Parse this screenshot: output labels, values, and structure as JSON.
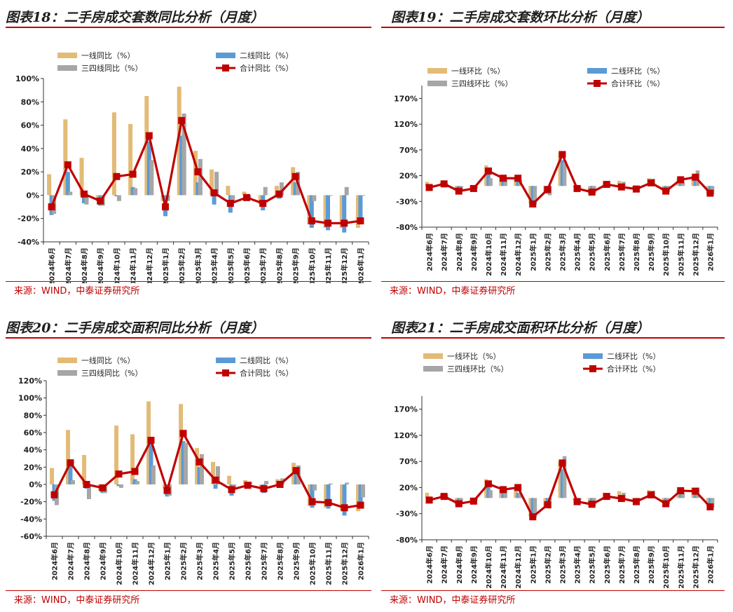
{
  "colors": {
    "tier1": "#e3bb77",
    "tier2": "#5b9bd5",
    "tier34": "#a6a6a6",
    "total": "#c00000",
    "axis": "#333333",
    "accent": "#c00000"
  },
  "chart_data": [
    {
      "type": "bar",
      "title": "图表18：二手房成交套数同比分析（月度）",
      "source": "来源：WIND，中泰证券研究所",
      "categories": [
        "2024年6月",
        "2024年7月",
        "2024年8月",
        "2024年9月",
        "2024年10月",
        "2024年11月",
        "2024年12月",
        "2025年1月",
        "2025年2月",
        "2025年3月",
        "2025年4月",
        "2025年5月",
        "2025年6月",
        "2025年7月",
        "2025年8月",
        "2025年9月",
        "2025年10月",
        "2025年11月",
        "2025年12月",
        "2026年1月"
      ],
      "yticks": [
        "100%",
        "80%",
        "60%",
        "40%",
        "20%",
        "0%",
        "-20%",
        "-40%"
      ],
      "ylim": [
        -40,
        100
      ],
      "series": [
        {
          "name": "一线同比（%）",
          "kind": "bar",
          "values": [
            18,
            65,
            32,
            -5,
            71,
            61,
            85,
            -5,
            93,
            38,
            22,
            8,
            3,
            -8,
            8,
            24,
            -25,
            -28,
            -28,
            -28
          ]
        },
        {
          "name": "二线同比（%）",
          "kind": "bar",
          "values": [
            -17,
            20,
            -7,
            -9,
            -1,
            7,
            46,
            -18,
            51,
            11,
            -8,
            -15,
            -5,
            -13,
            -3,
            11,
            -28,
            -30,
            -32,
            -25
          ]
        },
        {
          "name": "三四线同比（%）",
          "kind": "bar",
          "values": [
            -16,
            3,
            -8,
            -9,
            -5,
            6,
            30,
            -5,
            70,
            31,
            20,
            -5,
            -3,
            7,
            11,
            20,
            -5,
            0,
            7,
            0
          ]
        },
        {
          "name": "合计同比（%）",
          "kind": "line",
          "values": [
            -10,
            26,
            1,
            -5,
            16,
            18,
            51,
            -10,
            64,
            20,
            2,
            -7,
            -2,
            -7,
            1,
            16,
            -22,
            -24,
            -24,
            -22
          ]
        }
      ]
    },
    {
      "type": "bar",
      "title": "图表19：二手房成交套数环比分析（月度）",
      "source": "来源：WIND，中泰证券研究所",
      "categories": [
        "2024年6月",
        "2024年7月",
        "2024年8月",
        "2024年9月",
        "2024年10月",
        "2024年11月",
        "2024年12月",
        "2025年1月",
        "2025年2月",
        "2025年3月",
        "2025年4月",
        "2025年5月",
        "2025年6月",
        "2025年7月",
        "2025年8月",
        "2025年9月",
        "2025年10月",
        "2025年11月",
        "2025年12月",
        "2026年1月"
      ],
      "yticks": [
        "170%",
        "120%",
        "70%",
        "20%",
        "-30%",
        "-80%"
      ],
      "ylim": [
        -80,
        195
      ],
      "series": [
        {
          "name": "一线环比（%）",
          "kind": "bar",
          "values": [
            8,
            7,
            -10,
            -3,
            40,
            16,
            15,
            -35,
            -12,
            65,
            -3,
            -14,
            8,
            10,
            -3,
            15,
            -9,
            13,
            20,
            -15
          ]
        },
        {
          "name": "二线环比（%）",
          "kind": "bar",
          "values": [
            -5,
            0,
            -12,
            -5,
            25,
            13,
            12,
            -40,
            -15,
            50,
            -5,
            -16,
            0,
            -3,
            -8,
            5,
            -12,
            10,
            15,
            -18
          ]
        },
        {
          "name": "三四线环比（%）",
          "kind": "bar",
          "values": [
            -3,
            5,
            -10,
            -5,
            15,
            15,
            12,
            -36,
            -18,
            45,
            -5,
            -15,
            2,
            8,
            -6,
            14,
            -12,
            8,
            30,
            -16
          ]
        },
        {
          "name": "合计环比（%）",
          "kind": "line",
          "values": [
            -3,
            4,
            -10,
            -5,
            29,
            15,
            15,
            -35,
            -7,
            61,
            -5,
            -12,
            3,
            -2,
            -6,
            6,
            -10,
            12,
            17,
            -14
          ]
        }
      ]
    },
    {
      "type": "bar",
      "title": "图表20：二手房成交面积同比分析（月度）",
      "source": "来源：WIND，中泰证券研究所",
      "categories": [
        "2024年6月",
        "2024年7月",
        "2024年8月",
        "2024年9月",
        "2024年10月",
        "2024年11月",
        "2024年12月",
        "2025年1月",
        "2025年2月",
        "2025年3月",
        "2025年4月",
        "2025年5月",
        "2025年6月",
        "2025年7月",
        "2025年8月",
        "2025年9月",
        "2025年10月",
        "2025年11月",
        "2025年12月",
        "2026年1月"
      ],
      "yticks": [
        "120%",
        "100%",
        "80%",
        "60%",
        "40%",
        "20%",
        "0%",
        "-20%",
        "-40%",
        "-60%"
      ],
      "ylim": [
        -60,
        120
      ],
      "series": [
        {
          "name": "一线同比（%）",
          "kind": "bar",
          "values": [
            19,
            63,
            34,
            -7,
            68,
            58,
            96,
            -5,
            93,
            42,
            26,
            10,
            5,
            -7,
            6,
            25,
            -25,
            -27,
            -30,
            -31
          ]
        },
        {
          "name": "二线同比（%）",
          "kind": "bar",
          "values": [
            -19,
            22,
            -5,
            -10,
            -2,
            6,
            48,
            -14,
            50,
            20,
            -5,
            -13,
            -5,
            -10,
            -4,
            14,
            -27,
            -28,
            -36,
            -25
          ]
        },
        {
          "name": "三四线同比（%）",
          "kind": "bar",
          "values": [
            -24,
            5,
            -17,
            -10,
            -4,
            4,
            22,
            -13,
            48,
            35,
            21,
            -5,
            3,
            4,
            7,
            22,
            -7,
            1,
            2,
            -15
          ]
        },
        {
          "name": "合计同比（%）",
          "kind": "line",
          "values": [
            -12,
            25,
            0,
            -4,
            12,
            15,
            51,
            -7,
            59,
            26,
            5,
            -6,
            -1,
            -5,
            0,
            16,
            -20,
            -21,
            -27,
            -24
          ]
        }
      ]
    },
    {
      "type": "bar",
      "title": "图表21：二手房成交面积环比分析（月度）",
      "source": "来源：WIND，中泰证券研究所",
      "categories": [
        "2024年6月",
        "2024年7月",
        "2024年8月",
        "2024年9月",
        "2024年10月",
        "2024年11月",
        "2024年12月",
        "2025年1月",
        "2025年2月",
        "2025年3月",
        "2025年4月",
        "2025年5月",
        "2025年6月",
        "2025年7月",
        "2025年8月",
        "2025年9月",
        "2025年10月",
        "2025年11月",
        "2025年12月",
        "2026年1月"
      ],
      "yticks": [
        "170%",
        "120%",
        "70%",
        "20%",
        "-30%",
        "-80%"
      ],
      "ylim": [
        -80,
        195
      ],
      "series": [
        {
          "name": "一线环比（%）",
          "kind": "bar",
          "values": [
            10,
            8,
            -12,
            -3,
            36,
            15,
            18,
            -35,
            -18,
            70,
            -5,
            -14,
            10,
            13,
            -3,
            15,
            -10,
            14,
            20,
            -15
          ]
        },
        {
          "name": "二线环比（%）",
          "kind": "bar",
          "values": [
            -5,
            0,
            -15,
            -10,
            20,
            13,
            10,
            -40,
            -18,
            55,
            -8,
            -18,
            0,
            -2,
            -10,
            4,
            -15,
            12,
            15,
            -22
          ]
        },
        {
          "name": "三四线环比（%）",
          "kind": "bar",
          "values": [
            -2,
            6,
            -10,
            -5,
            15,
            15,
            10,
            -37,
            -20,
            80,
            -5,
            -15,
            4,
            10,
            -5,
            14,
            -12,
            10,
            20,
            -18
          ]
        },
        {
          "name": "合计环比（%）",
          "kind": "line",
          "values": [
            -4,
            3,
            -11,
            -6,
            27,
            16,
            20,
            -36,
            -13,
            67,
            -7,
            -12,
            3,
            -1,
            -7,
            6,
            -11,
            14,
            13,
            -17
          ]
        }
      ]
    }
  ]
}
